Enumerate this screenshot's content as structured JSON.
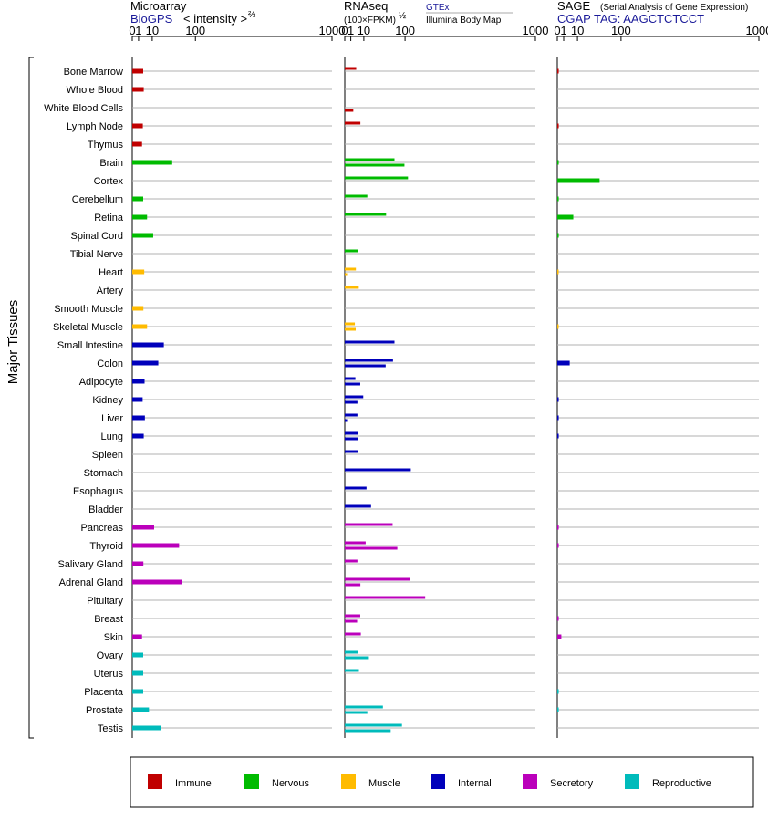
{
  "headers": {
    "microarray": {
      "title": "Microarray",
      "source": "BioGPS",
      "scale_label": "< intensity >",
      "scale_exp": "⅔"
    },
    "rnaseq": {
      "title": "RNAseq",
      "unit": "(100×FPKM)",
      "unit_exp": "½",
      "source_top": "GTEx",
      "source_bottom": "Illumina Body Map"
    },
    "sage": {
      "title": "SAGE",
      "title_note": "(Serial Analysis of Gene Expression)",
      "tag": "CGAP TAG: AAGCTCTCCT"
    }
  },
  "axis_label": "Major Tissues",
  "chart_data": {
    "type": "bar",
    "orientation": "horizontal",
    "x_scale": "root",
    "ticks": [
      "0",
      "1",
      "10",
      "100",
      "1000"
    ],
    "tick_values": [
      0,
      1,
      10,
      100,
      1000
    ],
    "categories": [
      "Bone Marrow",
      "Whole Blood",
      "White Blood Cells",
      "Lymph Node",
      "Thymus",
      "Brain",
      "Cortex",
      "Cerebellum",
      "Retina",
      "Spinal Cord",
      "Tibial Nerve",
      "Heart",
      "Artery",
      "Smooth Muscle",
      "Skeletal Muscle",
      "Small Intestine",
      "Colon",
      "Adipocyte",
      "Kidney",
      "Liver",
      "Lung",
      "Spleen",
      "Stomach",
      "Esophagus",
      "Bladder",
      "Pancreas",
      "Thyroid",
      "Salivary Gland",
      "Adrenal Gland",
      "Pituitary",
      "Breast",
      "Skin",
      "Ovary",
      "Uterus",
      "Placenta",
      "Prostate",
      "Testis"
    ],
    "groups": [
      "Immune",
      "Immune",
      "Immune",
      "Immune",
      "Immune",
      "Nervous",
      "Nervous",
      "Nervous",
      "Nervous",
      "Nervous",
      "Nervous",
      "Muscle",
      "Muscle",
      "Muscle",
      "Muscle",
      "Internal",
      "Internal",
      "Internal",
      "Internal",
      "Internal",
      "Internal",
      "Internal",
      "Internal",
      "Internal",
      "Internal",
      "Secretory",
      "Secretory",
      "Secretory",
      "Secretory",
      "Secretory",
      "Secretory",
      "Secretory",
      "Reproductive",
      "Reproductive",
      "Reproductive",
      "Reproductive",
      "Reproductive"
    ],
    "colors": {
      "Immune": "#c00000",
      "Nervous": "#00bb00",
      "Muscle": "#ffbb00",
      "Internal": "#0000bb",
      "Secretory": "#bb00bb",
      "Reproductive": "#00bbbb"
    },
    "series": [
      {
        "name": "Microarray",
        "values": [
          3.0,
          3.3,
          null,
          2.8,
          2.4,
          40,
          null,
          3.0,
          5.5,
          11,
          null,
          3.6,
          null,
          3.1,
          5.5,
          25,
          17,
          3.8,
          2.7,
          4.0,
          3.3,
          null,
          null,
          null,
          null,
          12,
          55,
          3.1,
          63,
          null,
          null,
          2.4,
          3.0,
          3.0,
          3.0,
          7.0,
          21
        ]
      },
      {
        "name": "GTEx",
        "values": [
          3.6,
          null,
          null,
          6.7,
          null,
          68,
          110,
          14,
          47,
          null,
          4.6,
          3.4,
          5.4,
          null,
          2.8,
          68,
          64,
          3.1,
          9.4,
          4.4,
          5.0,
          4.8,
          120,
          13,
          19,
          63,
          12,
          4.4,
          117,
          178,
          6.6,
          7.1,
          5.0,
          5.5,
          null,
          40,
          90
        ]
      },
      {
        "name": "Illumina Body Map",
        "values": [
          null,
          null,
          2.0,
          null,
          null,
          98,
          null,
          null,
          null,
          null,
          null,
          0.15,
          null,
          null,
          3.3,
          null,
          46,
          6.6,
          4.4,
          0.15,
          5.0,
          null,
          null,
          null,
          null,
          null,
          76,
          null,
          6.7,
          null,
          4.2,
          null,
          16,
          null,
          null,
          14,
          58
        ]
      },
      {
        "name": "SAGE",
        "values": [
          0.05,
          null,
          null,
          0.05,
          null,
          0.05,
          44,
          0.05,
          6.3,
          0.05,
          null,
          0.03,
          null,
          null,
          0.03,
          null,
          3.8,
          null,
          0.05,
          0.05,
          0.05,
          null,
          null,
          null,
          null,
          0.05,
          0.05,
          null,
          null,
          null,
          0.05,
          0.4,
          null,
          null,
          0.05,
          0.05,
          null
        ]
      }
    ]
  },
  "legend": [
    {
      "label": "Immune",
      "color": "#c00000"
    },
    {
      "label": "Nervous",
      "color": "#00bb00"
    },
    {
      "label": "Muscle",
      "color": "#ffbb00"
    },
    {
      "label": "Internal",
      "color": "#0000bb"
    },
    {
      "label": "Secretory",
      "color": "#bb00bb"
    },
    {
      "label": "Reproductive",
      "color": "#00bbbb"
    }
  ]
}
